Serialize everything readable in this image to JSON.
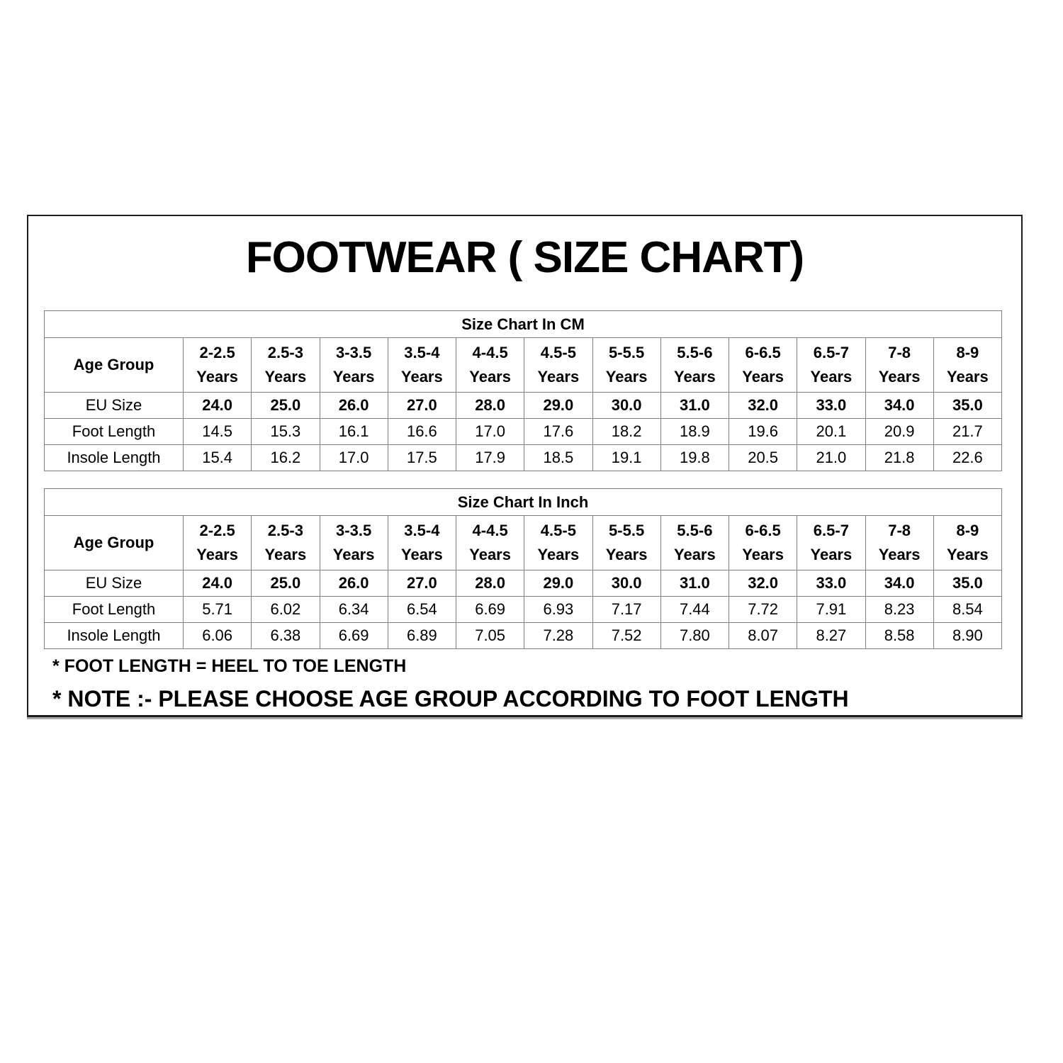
{
  "page": {
    "title": "FOOTWEAR ( SIZE CHART)",
    "footnotes": [
      "* FOOT LENGTH = HEEL TO TOE LENGTH",
      "* NOTE :- PLEASE CHOOSE AGE GROUP ACCORDING TO FOOT LENGTH"
    ],
    "colors": {
      "background": "#ffffff",
      "text": "#000000",
      "frame_border": "#1c1c1c",
      "table_border": "#7f7f7f"
    }
  },
  "chart_data": [
    {
      "type": "table",
      "title": "Size Chart In CM",
      "corner_header": "Age Group",
      "age_suffix": "Years",
      "age_groups": [
        "2-2.5",
        "2.5-3",
        "3-3.5",
        "3.5-4",
        "4-4.5",
        "4.5-5",
        "5-5.5",
        "5.5-6",
        "6-6.5",
        "6.5-7",
        "7-8",
        "8-9"
      ],
      "rows": [
        {
          "label": "EU Size",
          "bold_values": true,
          "values": [
            "24.0",
            "25.0",
            "26.0",
            "27.0",
            "28.0",
            "29.0",
            "30.0",
            "31.0",
            "32.0",
            "33.0",
            "34.0",
            "35.0"
          ]
        },
        {
          "label": "Foot Length",
          "bold_values": false,
          "values": [
            "14.5",
            "15.3",
            "16.1",
            "16.6",
            "17.0",
            "17.6",
            "18.2",
            "18.9",
            "19.6",
            "20.1",
            "20.9",
            "21.7"
          ]
        },
        {
          "label": "Insole Length",
          "bold_values": false,
          "values": [
            "15.4",
            "16.2",
            "17.0",
            "17.5",
            "17.9",
            "18.5",
            "19.1",
            "19.8",
            "20.5",
            "21.0",
            "21.8",
            "22.6"
          ]
        }
      ]
    },
    {
      "type": "table",
      "title": "Size Chart In Inch",
      "corner_header": "Age Group",
      "age_suffix": "Years",
      "age_groups": [
        "2-2.5",
        "2.5-3",
        "3-3.5",
        "3.5-4",
        "4-4.5",
        "4.5-5",
        "5-5.5",
        "5.5-6",
        "6-6.5",
        "6.5-7",
        "7-8",
        "8-9"
      ],
      "rows": [
        {
          "label": "EU Size",
          "bold_values": true,
          "values": [
            "24.0",
            "25.0",
            "26.0",
            "27.0",
            "28.0",
            "29.0",
            "30.0",
            "31.0",
            "32.0",
            "33.0",
            "34.0",
            "35.0"
          ]
        },
        {
          "label": "Foot Length",
          "bold_values": false,
          "values": [
            "5.71",
            "6.02",
            "6.34",
            "6.54",
            "6.69",
            "6.93",
            "7.17",
            "7.44",
            "7.72",
            "7.91",
            "8.23",
            "8.54"
          ]
        },
        {
          "label": "Insole Length",
          "bold_values": false,
          "values": [
            "6.06",
            "6.38",
            "6.69",
            "6.89",
            "7.05",
            "7.28",
            "7.52",
            "7.80",
            "8.07",
            "8.27",
            "8.58",
            "8.90"
          ]
        }
      ]
    }
  ]
}
